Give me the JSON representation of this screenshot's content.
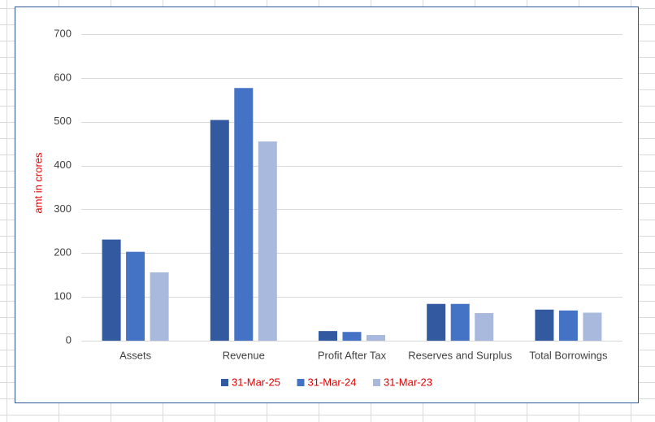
{
  "chart_data": {
    "type": "bar",
    "y_label": "amt in crores",
    "categories": [
      "Assets",
      "Revenue",
      "Profit After Tax",
      "Reserves and Surplus",
      "Total Borrowings"
    ],
    "series": [
      {
        "name": "31-Mar-25",
        "color": "#335aa1",
        "values": [
          231,
          504,
          22,
          84,
          71
        ]
      },
      {
        "name": "31-Mar-24",
        "color": "#4472c4",
        "values": [
          203,
          577,
          20,
          84,
          69
        ]
      },
      {
        "name": "31-Mar-23",
        "color": "#a9b8dd",
        "values": [
          156,
          455,
          13,
          63,
          64
        ]
      }
    ],
    "ylim": [
      0,
      700
    ],
    "yticks": [
      0,
      100,
      200,
      300,
      400,
      500,
      600,
      700
    ],
    "grid": true,
    "legend": "bottom",
    "legend_color": "#e00000",
    "y_label_color": "#e00000"
  }
}
